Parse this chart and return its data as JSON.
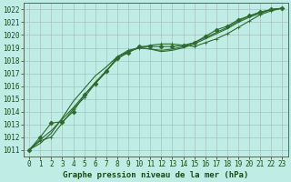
{
  "xlabel": "Graphe pression niveau de la mer (hPa)",
  "xlim": [
    -0.5,
    23.5
  ],
  "ylim": [
    1010.5,
    1022.5
  ],
  "yticks": [
    1011,
    1012,
    1013,
    1014,
    1015,
    1016,
    1017,
    1018,
    1019,
    1020,
    1021,
    1022
  ],
  "xticks": [
    0,
    1,
    2,
    3,
    4,
    5,
    6,
    7,
    8,
    9,
    10,
    11,
    12,
    13,
    14,
    15,
    16,
    17,
    18,
    19,
    20,
    21,
    22,
    23
  ],
  "background_color": "#c0ece6",
  "grid_color": "#a0b8b4",
  "line_color": "#2d6a2d",
  "lines": [
    {
      "y": [
        1011.0,
        1011.7,
        1012.0,
        1013.1,
        1014.2,
        1015.1,
        1016.2,
        1017.1,
        1018.3,
        1018.8,
        1019.0,
        1019.2,
        1019.3,
        1019.3,
        1019.2,
        1019.1,
        1019.4,
        1019.7,
        1020.1,
        1020.6,
        1021.1,
        1021.6,
        1021.9,
        1022.1
      ],
      "marker": true,
      "marker_style": "+"
    },
    {
      "y": [
        1011.0,
        1011.5,
        1012.3,
        1013.5,
        1014.8,
        1015.8,
        1016.8,
        1017.5,
        1018.3,
        1018.7,
        1019.0,
        1018.9,
        1018.7,
        1018.8,
        1019.0,
        1019.3,
        1019.7,
        1020.1,
        1020.5,
        1021.0,
        1021.4,
        1021.7,
        1022.0,
        1022.1
      ],
      "marker": false,
      "marker_style": null
    },
    {
      "y": [
        1011.0,
        1011.8,
        1012.5,
        1013.4,
        1014.3,
        1015.3,
        1016.3,
        1017.2,
        1018.1,
        1018.7,
        1019.0,
        1018.9,
        1018.8,
        1018.9,
        1019.1,
        1019.4,
        1019.8,
        1020.2,
        1020.6,
        1021.1,
        1021.5,
        1021.8,
        1022.0,
        1022.1
      ],
      "marker": false,
      "marker_style": null
    },
    {
      "y": [
        1011.0,
        1012.0,
        1013.1,
        1013.2,
        1014.0,
        1015.3,
        1016.2,
        1017.2,
        1018.2,
        1018.6,
        1019.1,
        1019.1,
        1019.1,
        1019.1,
        1019.2,
        1019.4,
        1019.9,
        1020.4,
        1020.7,
        1021.2,
        1021.5,
        1021.8,
        1022.0,
        1022.1
      ],
      "marker": true,
      "marker_style": "D"
    }
  ],
  "linewidth": 0.8,
  "font_color": "#1a4a1a",
  "font_size_label": 6.5,
  "font_size_tick": 5.5
}
